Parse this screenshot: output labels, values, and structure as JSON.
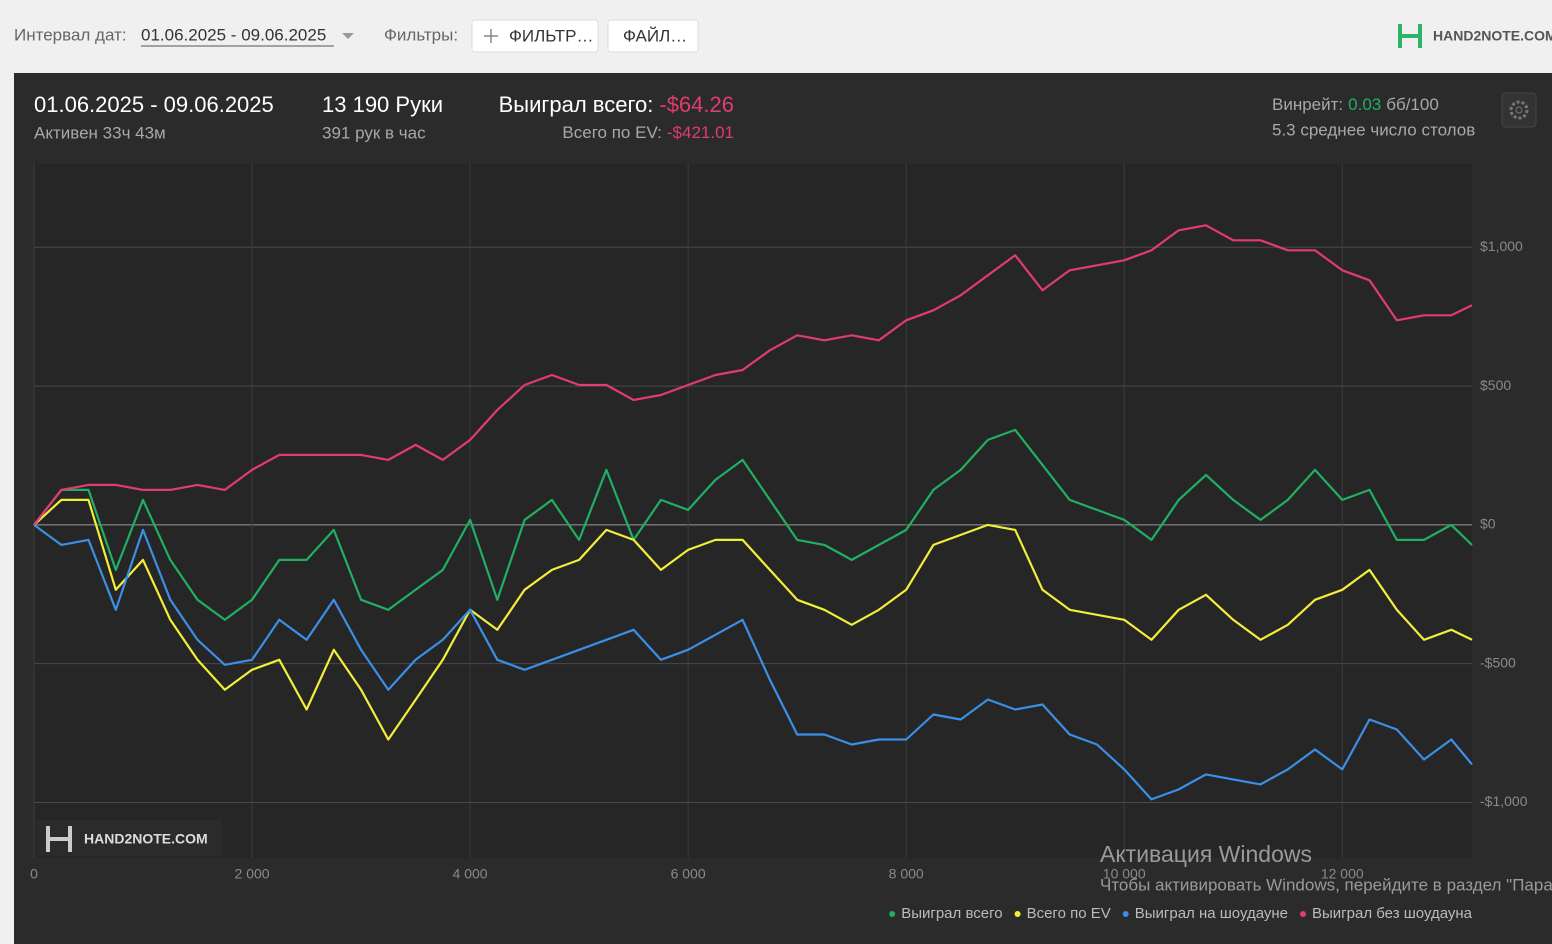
{
  "toolbar": {
    "date_label": "Интервал дат:",
    "date_range": "01.06.2025 - 09.06.2025",
    "filters_label": "Фильтры:",
    "filter_button": "ФИЛЬТР…",
    "file_button": "ФАЙЛ…",
    "logo": "HAND2NOTE.COM"
  },
  "summary": {
    "date_range": "01.06.2025 - 09.06.2025",
    "active": "Активен 33ч 43м",
    "hands": "13 190 Руки",
    "hands_per_hour": "391 рук в час",
    "won_label": "Выиграл всего:",
    "won_value": "-$64.26",
    "ev_label": "Всего по EV:",
    "ev_value": "-$421.01",
    "winrate_label": "Винрейт:",
    "winrate_value": "0.03",
    "winrate_unit": "бб/100",
    "tables": "5.3 среднее число столов"
  },
  "chart_data": {
    "type": "line",
    "watermark": "HAND2NOTE.COM",
    "grid": true,
    "x": [
      0,
      250,
      500,
      750,
      1000,
      1250,
      1500,
      1750,
      2000,
      2250,
      2500,
      2750,
      3000,
      3250,
      3500,
      3750,
      4000,
      4250,
      4500,
      4750,
      5000,
      5250,
      5500,
      5750,
      6000,
      6250,
      6500,
      6750,
      7000,
      7250,
      7500,
      7750,
      8000,
      8250,
      8500,
      8750,
      9000,
      9250,
      9500,
      9750,
      10000,
      10250,
      10500,
      10750,
      11000,
      11250,
      11500,
      11750,
      12000,
      12250,
      12500,
      12750,
      13000,
      13190
    ],
    "xlim": [
      0,
      13190
    ],
    "xticks": [
      0,
      {
        "value": 2000,
        "label": "2 000"
      },
      {
        "value": 4000,
        "label": "4 000"
      },
      {
        "value": 6000,
        "label": "6 000"
      },
      {
        "value": 8000,
        "label": "8 000"
      },
      {
        "value": 10000,
        "label": "10 000"
      },
      {
        "value": 12000,
        "label": "12 000"
      }
    ],
    "ylim": [
      -1200,
      1300
    ],
    "yticks": [
      {
        "value": -1000,
        "label": "-$1,000"
      },
      {
        "value": -500,
        "label": "-$500"
      },
      {
        "value": 0,
        "label": "$0"
      },
      {
        "value": 500,
        "label": "$500"
      },
      {
        "value": 1000,
        "label": "$1,000"
      }
    ],
    "series": [
      {
        "name": "Выиграл всего",
        "color": "#1fb062",
        "values": [
          0,
          126,
          126,
          -162,
          90,
          -126,
          -270,
          -342,
          -270,
          -126,
          -126,
          -18,
          -270,
          -306,
          -234,
          -162,
          18,
          -270,
          18,
          90,
          -54,
          198,
          -54,
          90,
          54,
          162,
          234,
          90,
          -54,
          -72,
          -126,
          -72,
          -18,
          126,
          198,
          306,
          342,
          216,
          90,
          54,
          18,
          -54,
          90,
          180,
          90,
          18,
          90,
          198,
          90,
          126,
          -54,
          -54,
          0,
          -72
        ]
      },
      {
        "name": "Всего по EV",
        "color": "#f2ee3a",
        "values": [
          0,
          90,
          90,
          -234,
          -126,
          -342,
          -486,
          -594,
          -522,
          -486,
          -665,
          -450,
          -594,
          -773,
          -630,
          -486,
          -306,
          -378,
          -234,
          -162,
          -126,
          -18,
          -54,
          -162,
          -90,
          -54,
          -54,
          -162,
          -270,
          -306,
          -360,
          -306,
          -234,
          -72,
          -36,
          0,
          -18,
          -234,
          -306,
          -324,
          -342,
          -414,
          -306,
          -252,
          -342,
          -414,
          -360,
          -270,
          -234,
          -162,
          -306,
          -414,
          -378,
          -414
        ]
      },
      {
        "name": "Выиграл на шоудауне",
        "color": "#3b8fe6",
        "values": [
          0,
          -72,
          -54,
          -306,
          -18,
          -270,
          -414,
          -504,
          -486,
          -342,
          -414,
          -270,
          -450,
          -594,
          -486,
          -414,
          -306,
          -486,
          -522,
          -486,
          -450,
          -414,
          -378,
          -486,
          -450,
          -396,
          -342,
          -558,
          -755,
          -755,
          -791,
          -773,
          -773,
          -683,
          -701,
          -629,
          -665,
          -647,
          -755,
          -791,
          -881,
          -989,
          -953,
          -899,
          -917,
          -935,
          -881,
          -809,
          -881,
          -701,
          -737,
          -845,
          -773,
          -863
        ]
      },
      {
        "name": "Выиграл без шоудауна",
        "color": "#e23b6f",
        "values": [
          0,
          126,
          144,
          144,
          126,
          126,
          144,
          126,
          198,
          252,
          252,
          252,
          252,
          234,
          288,
          234,
          306,
          414,
          504,
          540,
          504,
          504,
          450,
          468,
          504,
          540,
          558,
          629,
          683,
          665,
          683,
          665,
          737,
          773,
          827,
          899,
          971,
          845,
          917,
          935,
          953,
          989,
          1061,
          1079,
          1025,
          1025,
          989,
          989,
          917,
          881,
          737,
          755,
          755,
          791
        ]
      }
    ]
  },
  "os_notice": {
    "title": "Активация Windows",
    "text": "Чтобы активировать Windows, перейдите в раздел \"Параметры\"."
  }
}
